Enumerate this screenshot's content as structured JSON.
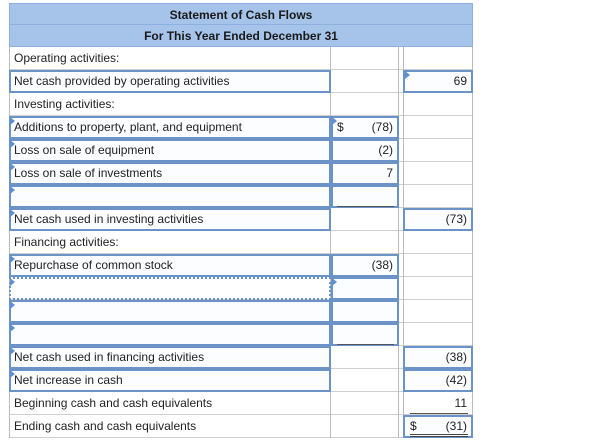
{
  "statement": {
    "title": "Statement of Cash Flows",
    "subtitle": "For This Year Ended December 31"
  },
  "rows": {
    "op_heading": "Operating activities:",
    "op_net_label": "Net cash provided by operating activities",
    "op_net_total": "69",
    "inv_heading": "Investing activities:",
    "inv_additions_label": "Additions to property, plant, and equipment",
    "inv_additions_currency": "$",
    "inv_additions_value": "(78)",
    "inv_loss_equipment_label": "Loss on sale of equipment",
    "inv_loss_equipment_value": "(2)",
    "inv_loss_investments_label": "Loss on sale of investments",
    "inv_loss_investments_value": "7",
    "inv_net_label": "Net cash used in investing activities",
    "inv_net_total": "(73)",
    "fin_heading": "Financing activities:",
    "fin_repurchase_label": "Repurchase of common stock",
    "fin_repurchase_value": "(38)",
    "fin_net_label": "Net cash used in financing activities",
    "fin_net_total": "(38)",
    "net_increase_label": "Net increase in cash",
    "net_increase_total": "(42)",
    "beginning_label": "Beginning cash and cash equivalents",
    "beginning_total": "11",
    "ending_label": "Ending cash and cash equivalents",
    "ending_currency": "$",
    "ending_total": "(31)"
  },
  "icons": {
    "input_marker": "blue-triangle-marker"
  }
}
